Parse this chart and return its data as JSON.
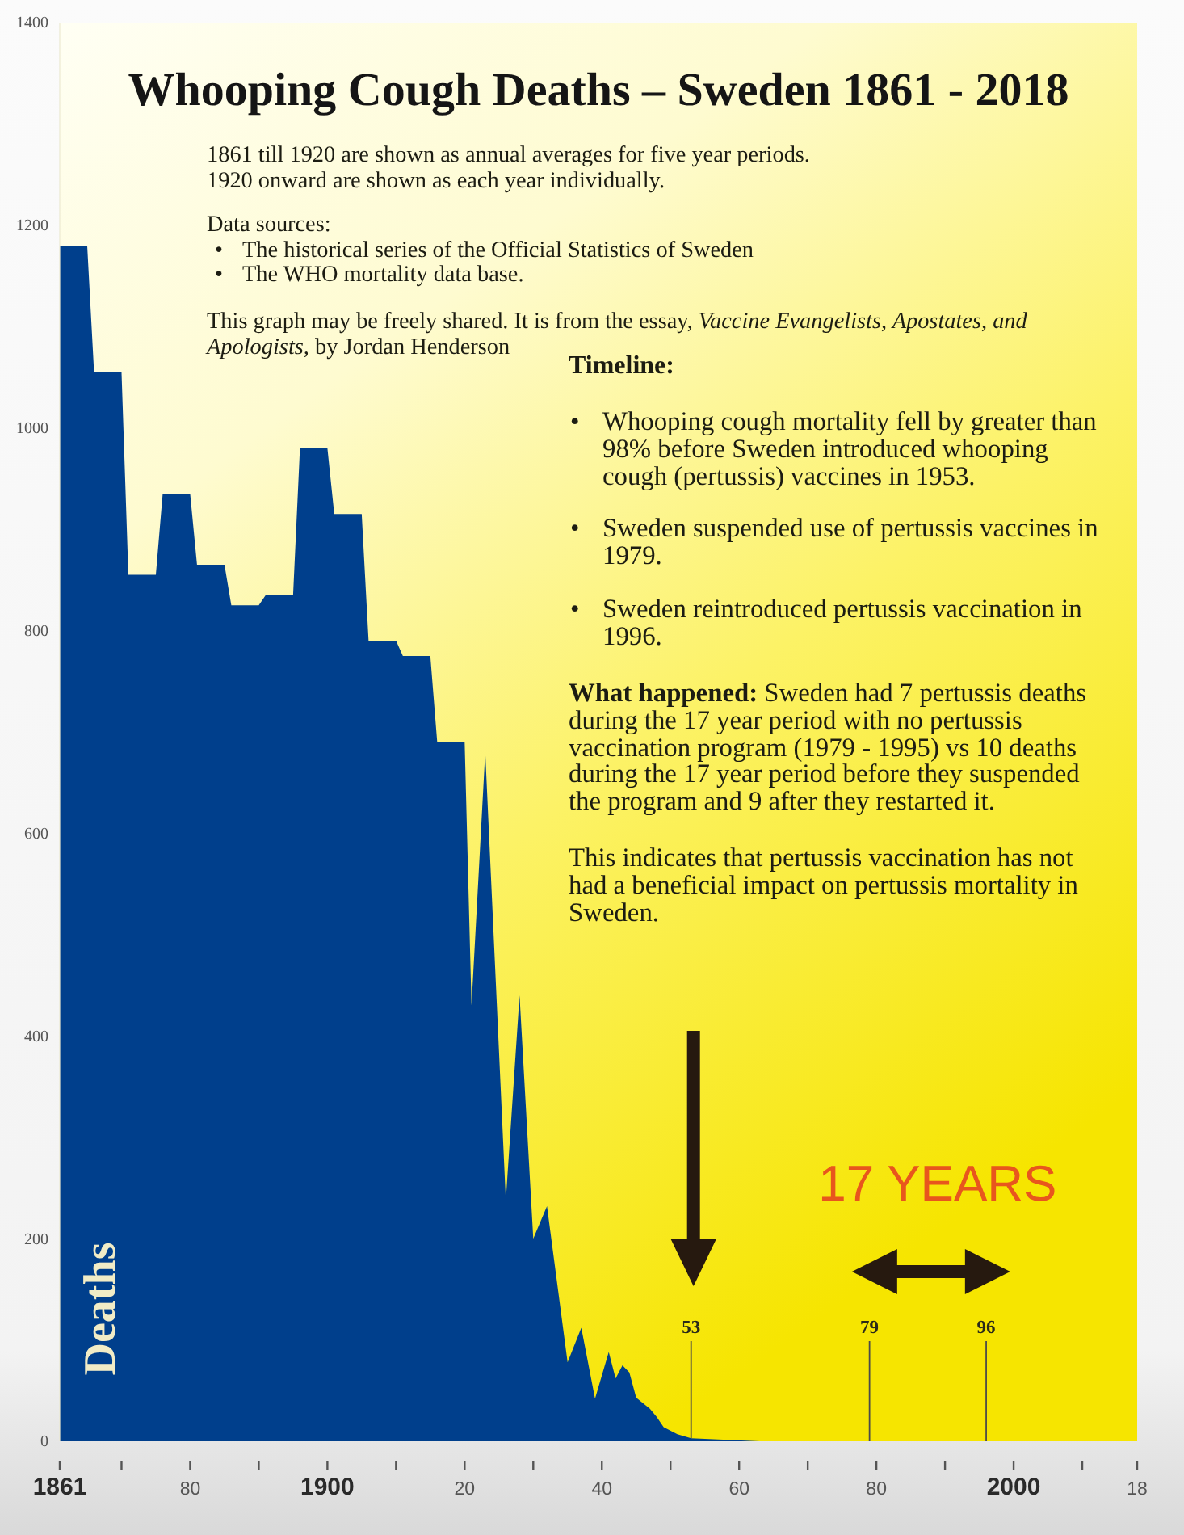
{
  "chart_data": {
    "type": "area",
    "title": "Whooping Cough Deaths – Sweden 1861 - 2018",
    "ylabel": "Deaths",
    "color": "#003f8c",
    "x": [
      1861,
      1865,
      1866,
      1870,
      1871,
      1875,
      1876,
      1880,
      1881,
      1885,
      1886,
      1890,
      1891,
      1895,
      1896,
      1900,
      1901,
      1905,
      1906,
      1910,
      1911,
      1915,
      1916,
      1920,
      1921,
      1923,
      1926,
      1928,
      1930,
      1932,
      1935,
      1937,
      1939,
      1941,
      1942,
      1943,
      1944,
      1945,
      1947,
      1948,
      1949,
      1951,
      1953,
      1963,
      1979,
      1996,
      2018
    ],
    "values": [
      1180,
      1180,
      1055,
      1055,
      855,
      855,
      935,
      935,
      865,
      865,
      825,
      825,
      835,
      835,
      980,
      980,
      915,
      915,
      790,
      790,
      775,
      775,
      690,
      690,
      430,
      680,
      238,
      440,
      200,
      232,
      78,
      112,
      42,
      88,
      62,
      75,
      68,
      43,
      32,
      24,
      14,
      7,
      3,
      0,
      0,
      0,
      0
    ],
    "xlim": [
      1861,
      2018
    ],
    "xticks": [
      1861,
      {
        "value": 1870,
        "label": null
      },
      {
        "value": 1880,
        "label": "80"
      },
      {
        "value": 1890,
        "label": null
      },
      1900,
      {
        "value": 1910,
        "label": null
      },
      {
        "value": 1920,
        "label": "20"
      },
      {
        "value": 1930,
        "label": null
      },
      {
        "value": 1940,
        "label": "40"
      },
      {
        "value": 1950,
        "label": null
      },
      {
        "value": 1960,
        "label": "60"
      },
      {
        "value": 1970,
        "label": null
      },
      {
        "value": 1980,
        "label": "80"
      },
      {
        "value": 1990,
        "label": null
      },
      2000,
      {
        "value": 2010,
        "label": null
      },
      {
        "value": 2018,
        "label": "18"
      }
    ],
    "ylim": [
      0,
      1400
    ],
    "yticks": [
      0,
      200,
      400,
      600,
      800,
      1000,
      1200,
      1400
    ],
    "annotations": [
      "1861 till 1920 are shown as annual averages for five year periods.",
      "1920 onward are shown as each year individually.",
      "Data sources:",
      "•",
      "The historical series of the Official Statistics of Sweden",
      "•",
      "The WHO mortality data base.",
      "This graph may be freely shared. It is from the essay,",
      "Vaccine Evangelists, Apostates, and",
      "Apologists,",
      "by Jordan Henderson",
      "Timeline:",
      "•",
      "Whooping cough mortality fell by greater than 98% before Sweden introduced whooping cough (pertussis) vaccines in 1953.",
      "•",
      "Sweden suspended use of pertussis vaccines in 1979.",
      "•",
      "Sweden reintroduced pertussis vaccination in 1996.",
      "What happened:",
      "Sweden had 7 pertussis deaths during the 17 year period with no pertussis vaccination program (1979 - 1995) vs 10 deaths during the 17 year period before they suspended the program and 9 after they restarted it.",
      "This indicates that pertussis vaccination has not had a beneficial impact on pertussis mortality in Sweden.",
      "17 YEARS",
      {
        "text": "53",
        "x": 1953,
        "y": 3
      },
      {
        "text": "79",
        "x": 1979,
        "y": 0
      },
      {
        "text": "96",
        "x": 1996,
        "y": 0
      }
    ]
  }
}
